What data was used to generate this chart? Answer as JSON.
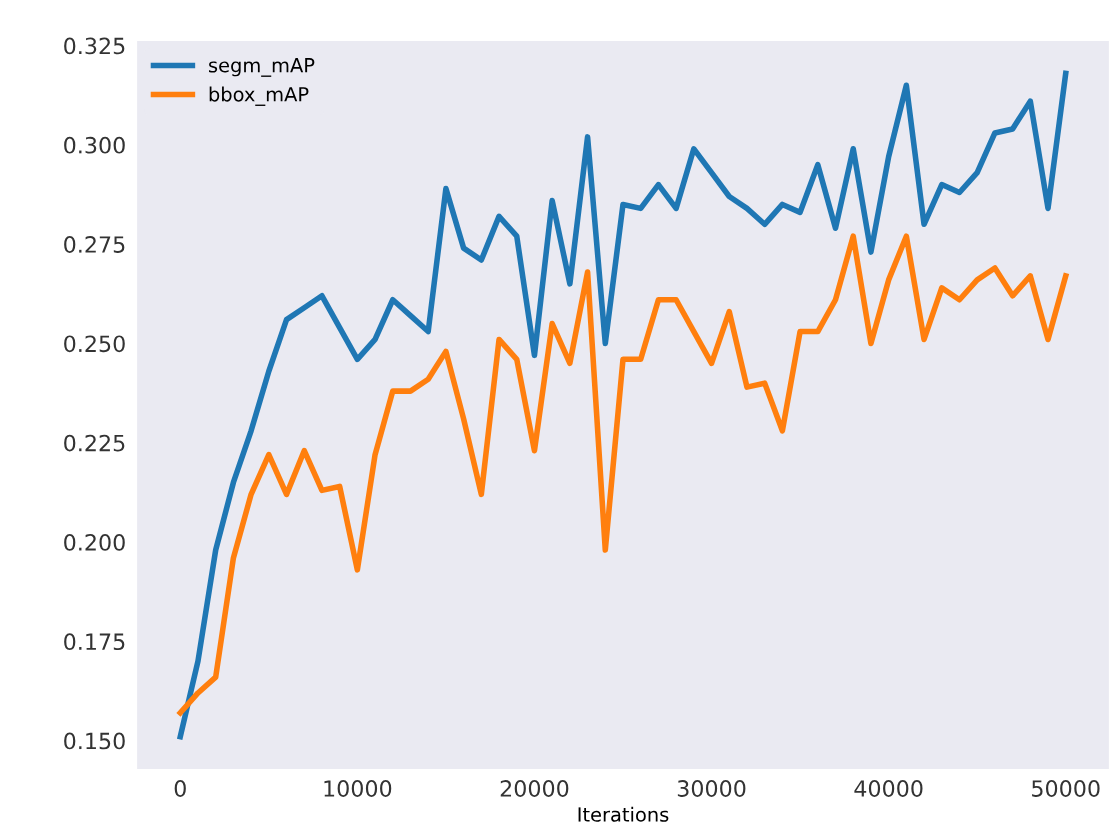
{
  "chart_data": {
    "type": "line",
    "xlabel": "Iterations",
    "x": [
      0,
      1000,
      2000,
      3000,
      4000,
      5000,
      6000,
      7000,
      8000,
      9000,
      10000,
      11000,
      12000,
      13000,
      14000,
      15000,
      16000,
      17000,
      18000,
      19000,
      20000,
      21000,
      22000,
      23000,
      24000,
      25000,
      26000,
      27000,
      28000,
      29000,
      30000,
      31000,
      32000,
      33000,
      34000,
      35000,
      36000,
      37000,
      38000,
      39000,
      40000,
      41000,
      42000,
      43000,
      44000,
      45000,
      46000,
      47000,
      48000,
      49000,
      50000
    ],
    "series": [
      {
        "name": "segm_mAP",
        "color": "#1f77b4",
        "values": [
          0.151,
          0.17,
          0.198,
          0.215,
          0.228,
          0.243,
          0.256,
          0.259,
          0.262,
          0.254,
          0.246,
          0.251,
          0.261,
          0.257,
          0.253,
          0.289,
          0.274,
          0.271,
          0.282,
          0.277,
          0.247,
          0.286,
          0.265,
          0.302,
          0.25,
          0.285,
          0.284,
          0.29,
          0.284,
          0.299,
          0.293,
          0.287,
          0.284,
          0.28,
          0.285,
          0.283,
          0.295,
          0.279,
          0.299,
          0.273,
          0.297,
          0.315,
          0.28,
          0.29,
          0.288,
          0.293,
          0.303,
          0.304,
          0.311,
          0.284,
          0.318
        ]
      },
      {
        "name": "bbox_mAP",
        "color": "#ff7f0e",
        "values": [
          0.157,
          0.162,
          0.166,
          0.196,
          0.212,
          0.222,
          0.212,
          0.223,
          0.213,
          0.214,
          0.193,
          0.222,
          0.238,
          0.238,
          0.241,
          0.248,
          0.231,
          0.212,
          0.251,
          0.246,
          0.223,
          0.255,
          0.245,
          0.268,
          0.198,
          0.246,
          0.246,
          0.261,
          0.261,
          0.253,
          0.245,
          0.258,
          0.239,
          0.24,
          0.228,
          0.253,
          0.253,
          0.261,
          0.277,
          0.25,
          0.266,
          0.277,
          0.251,
          0.264,
          0.261,
          0.266,
          0.269,
          0.262,
          0.267,
          0.251,
          0.267
        ]
      }
    ],
    "xlim": [
      -2500,
      52500
    ],
    "xticks": [
      0,
      10000,
      20000,
      30000,
      40000,
      50000
    ],
    "ylim": [
      0.1426,
      0.3264
    ],
    "yticks": [
      {
        "value": 0.15,
        "label": "0.150"
      },
      {
        "value": 0.175,
        "label": "0.175"
      },
      {
        "value": 0.2,
        "label": "0.200"
      },
      {
        "value": 0.225,
        "label": "0.225"
      },
      {
        "value": 0.25,
        "label": "0.250"
      },
      {
        "value": 0.275,
        "label": "0.275"
      },
      {
        "value": 0.3,
        "label": "0.300"
      },
      {
        "value": 0.325,
        "label": "0.325"
      }
    ],
    "grid": false,
    "legend": "top left",
    "marker": "none",
    "line_style": "solid"
  }
}
